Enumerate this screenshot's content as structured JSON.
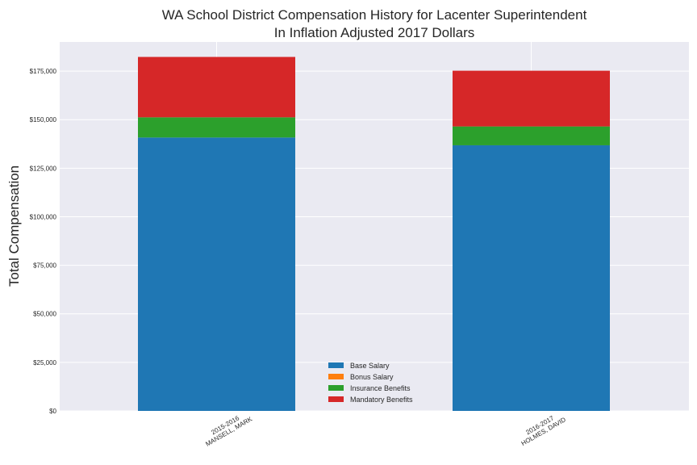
{
  "chart_data": {
    "type": "bar",
    "stacked": true,
    "title": [
      "WA School District Compensation History for Lacenter Superintendent",
      "In Inflation Adjusted 2017 Dollars"
    ],
    "xlabel": "",
    "ylabel": "Total Compensation",
    "ylim": [
      0,
      190000
    ],
    "yticks": [
      0,
      25000,
      50000,
      75000,
      100000,
      125000,
      150000,
      175000
    ],
    "ytick_labels": [
      "$0",
      "$25,000",
      "$50,000",
      "$75,000",
      "$100,000",
      "$125,000",
      "$150,000",
      "$175,000"
    ],
    "categories": [
      [
        "2015-2016",
        "MANSELL, MARK"
      ],
      [
        "2016-2017",
        "HOLMES, DAVID"
      ]
    ],
    "series": [
      {
        "name": "Base Salary",
        "color": "#1f77b4",
        "values": [
          140800,
          136800
        ]
      },
      {
        "name": "Bonus Salary",
        "color": "#ff7f0e",
        "values": [
          0,
          0
        ]
      },
      {
        "name": "Insurance Benefits",
        "color": "#2ca02c",
        "values": [
          10400,
          9700
        ]
      },
      {
        "name": "Mandatory Benefits",
        "color": "#d62728",
        "values": [
          31100,
          28700
        ]
      }
    ],
    "grid": true,
    "legend_position": "lower-center"
  }
}
